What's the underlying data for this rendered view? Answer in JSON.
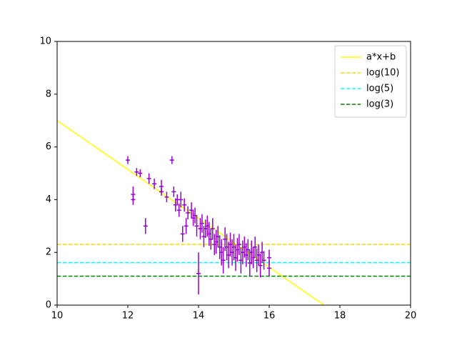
{
  "chart_data": {
    "type": "errorbar",
    "xlim": [
      10,
      20
    ],
    "ylim": [
      0,
      10
    ],
    "xticks": [
      10,
      12,
      14,
      16,
      18,
      20
    ],
    "yticks": [
      0,
      2,
      4,
      6,
      8,
      10
    ],
    "legend": "upper right",
    "points": {
      "color": "#9400d3",
      "marker": "+",
      "x": [
        12.0,
        12.15,
        12.15,
        12.25,
        12.35,
        12.5,
        12.6,
        12.75,
        12.95,
        12.95,
        13.1,
        13.25,
        13.3,
        13.35,
        13.4,
        13.45,
        13.5,
        13.55,
        13.6,
        13.65,
        13.7,
        13.8,
        13.85,
        13.9,
        13.95,
        14.0,
        14.05,
        14.1,
        14.15,
        14.2,
        14.25,
        14.3,
        14.35,
        14.4,
        14.45,
        14.5,
        14.55,
        14.6,
        14.65,
        14.7,
        14.75,
        14.8,
        14.85,
        14.9,
        14.95,
        15.0,
        15.05,
        15.1,
        15.15,
        15.2,
        15.25,
        15.3,
        15.35,
        15.4,
        15.45,
        15.5,
        15.55,
        15.6,
        15.65,
        15.7,
        15.75,
        15.8,
        15.85,
        16.0,
        16.0
      ],
      "values": [
        5.5,
        4.2,
        4.0,
        5.05,
        5.0,
        3.0,
        4.8,
        4.6,
        4.5,
        4.3,
        4.1,
        5.5,
        4.3,
        3.8,
        4.0,
        3.6,
        4.0,
        2.7,
        3.8,
        3.0,
        3.5,
        3.6,
        3.3,
        3.4,
        3.0,
        1.2,
        2.9,
        3.1,
        2.6,
        2.9,
        3.0,
        2.7,
        2.5,
        2.9,
        2.3,
        2.4,
        2.6,
        2.2,
        2.0,
        1.7,
        2.5,
        2.2,
        1.9,
        2.3,
        2.0,
        2.2,
        1.8,
        2.1,
        2.3,
        1.7,
        2.0,
        2.2,
        1.9,
        2.1,
        1.6,
        2.0,
        1.8,
        2.2,
        1.7,
        1.9,
        1.5,
        2.0,
        1.7,
        1.8,
        1.4
      ],
      "yerr": [
        0.15,
        0.3,
        0.2,
        0.15,
        0.15,
        0.3,
        0.2,
        0.2,
        0.25,
        0.15,
        0.2,
        0.15,
        0.2,
        0.25,
        0.2,
        0.25,
        0.3,
        0.3,
        0.25,
        0.3,
        0.25,
        0.3,
        0.3,
        0.3,
        0.4,
        0.8,
        0.4,
        0.35,
        0.4,
        0.35,
        0.4,
        0.45,
        0.4,
        0.4,
        0.4,
        0.45,
        0.4,
        0.45,
        0.5,
        0.5,
        0.45,
        0.5,
        0.5,
        0.45,
        0.5,
        0.5,
        0.5,
        0.45,
        0.4,
        0.5,
        0.45,
        0.4,
        0.45,
        0.4,
        0.5,
        0.45,
        0.4,
        0.4,
        0.45,
        0.4,
        0.45,
        0.4,
        0.35,
        0.3,
        0.3
      ]
    },
    "series": [
      {
        "name": "a*x+b",
        "color": "#ffff00",
        "style": "solid",
        "x": [
          10,
          17.55
        ],
        "values": [
          7.0,
          0
        ]
      },
      {
        "name": "log(10)",
        "color": "#ffd700",
        "style": "dashed",
        "x": [
          10,
          20
        ],
        "values": [
          2.303,
          2.303
        ]
      },
      {
        "name": "log(5)",
        "color": "#00ffff",
        "style": "dashed",
        "x": [
          10,
          20
        ],
        "values": [
          1.609,
          1.609
        ]
      },
      {
        "name": "log(3)",
        "color": "#008000",
        "style": "dashed",
        "x": [
          10,
          20
        ],
        "values": [
          1.099,
          1.099
        ]
      }
    ]
  }
}
